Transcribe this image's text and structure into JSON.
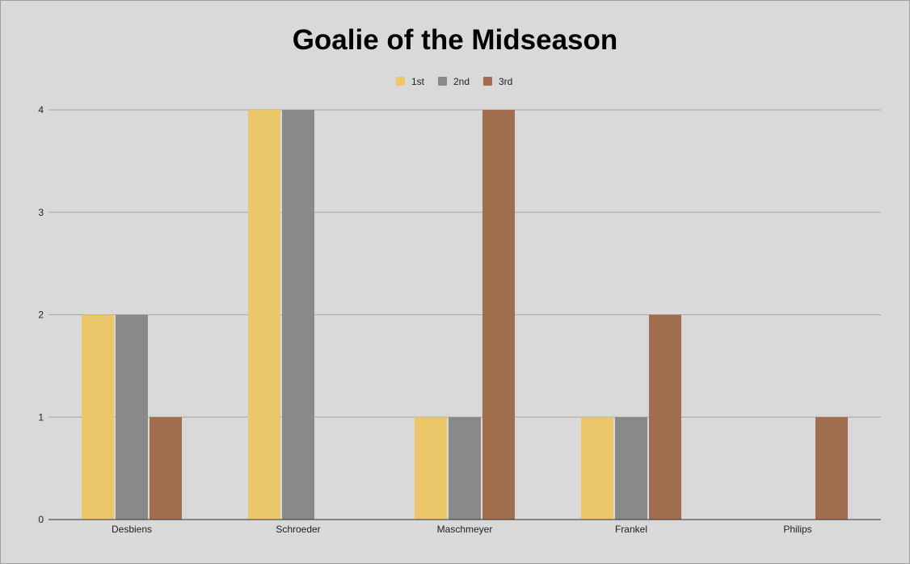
{
  "chart_data": {
    "type": "bar",
    "title": "Goalie of the Midseason",
    "xlabel": "",
    "ylabel": "",
    "categories": [
      "Desbiens",
      "Schroeder",
      "Maschmeyer",
      "Frankel",
      "Philips"
    ],
    "series": [
      {
        "name": "1st",
        "color": "#ecc769",
        "values": [
          2,
          4,
          1,
          1,
          0
        ]
      },
      {
        "name": "2nd",
        "color": "#888a89",
        "values": [
          2,
          4,
          1,
          1,
          0
        ]
      },
      {
        "name": "3rd",
        "color": "#a06d4e",
        "values": [
          1,
          0,
          4,
          2,
          1
        ]
      }
    ],
    "ylim": [
      0,
      4
    ],
    "yticks": [
      "0",
      "1",
      "2",
      "3",
      "4"
    ],
    "grid": true,
    "legend_position": "top-center"
  }
}
